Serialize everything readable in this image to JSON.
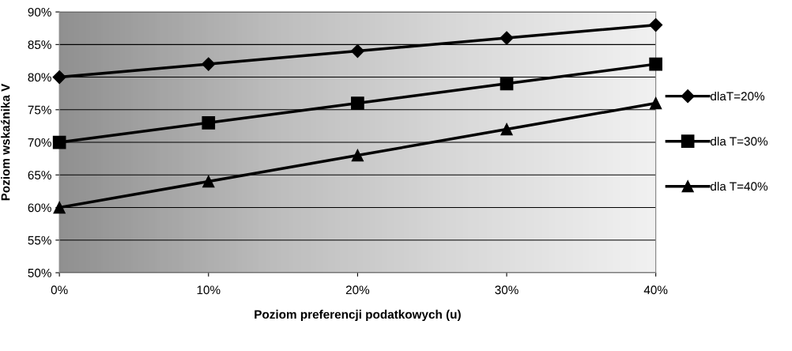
{
  "chart_data": {
    "type": "line",
    "xlabel": "Poziom preferencji podatkowych (u)",
    "ylabel": "Poziom wskaźnika V",
    "categories": [
      "0%",
      "10%",
      "20%",
      "30%",
      "40%"
    ],
    "series": [
      {
        "name": "dlaT=20%",
        "color": "#000000",
        "marker": "diamond",
        "values": [
          80,
          82,
          84,
          86,
          88
        ]
      },
      {
        "name": "dla T=30%",
        "color": "#000000",
        "marker": "square",
        "values": [
          70,
          73,
          76,
          79,
          82
        ]
      },
      {
        "name": "dla T=40%",
        "color": "#000000",
        "marker": "triangle",
        "values": [
          60,
          64,
          68,
          72,
          76
        ]
      }
    ],
    "ylim": [
      50,
      90
    ],
    "yticks": [
      {
        "value": 50,
        "label": "50%"
      },
      {
        "value": 55,
        "label": "55%"
      },
      {
        "value": 60,
        "label": "60%"
      },
      {
        "value": 65,
        "label": "65%"
      },
      {
        "value": 70,
        "label": "70%"
      },
      {
        "value": 75,
        "label": "75%"
      },
      {
        "value": 80,
        "label": "80%"
      },
      {
        "value": 85,
        "label": "85%"
      },
      {
        "value": 90,
        "label": "90%"
      }
    ],
    "grid": "y",
    "legend": "right",
    "line_style": "solid"
  }
}
